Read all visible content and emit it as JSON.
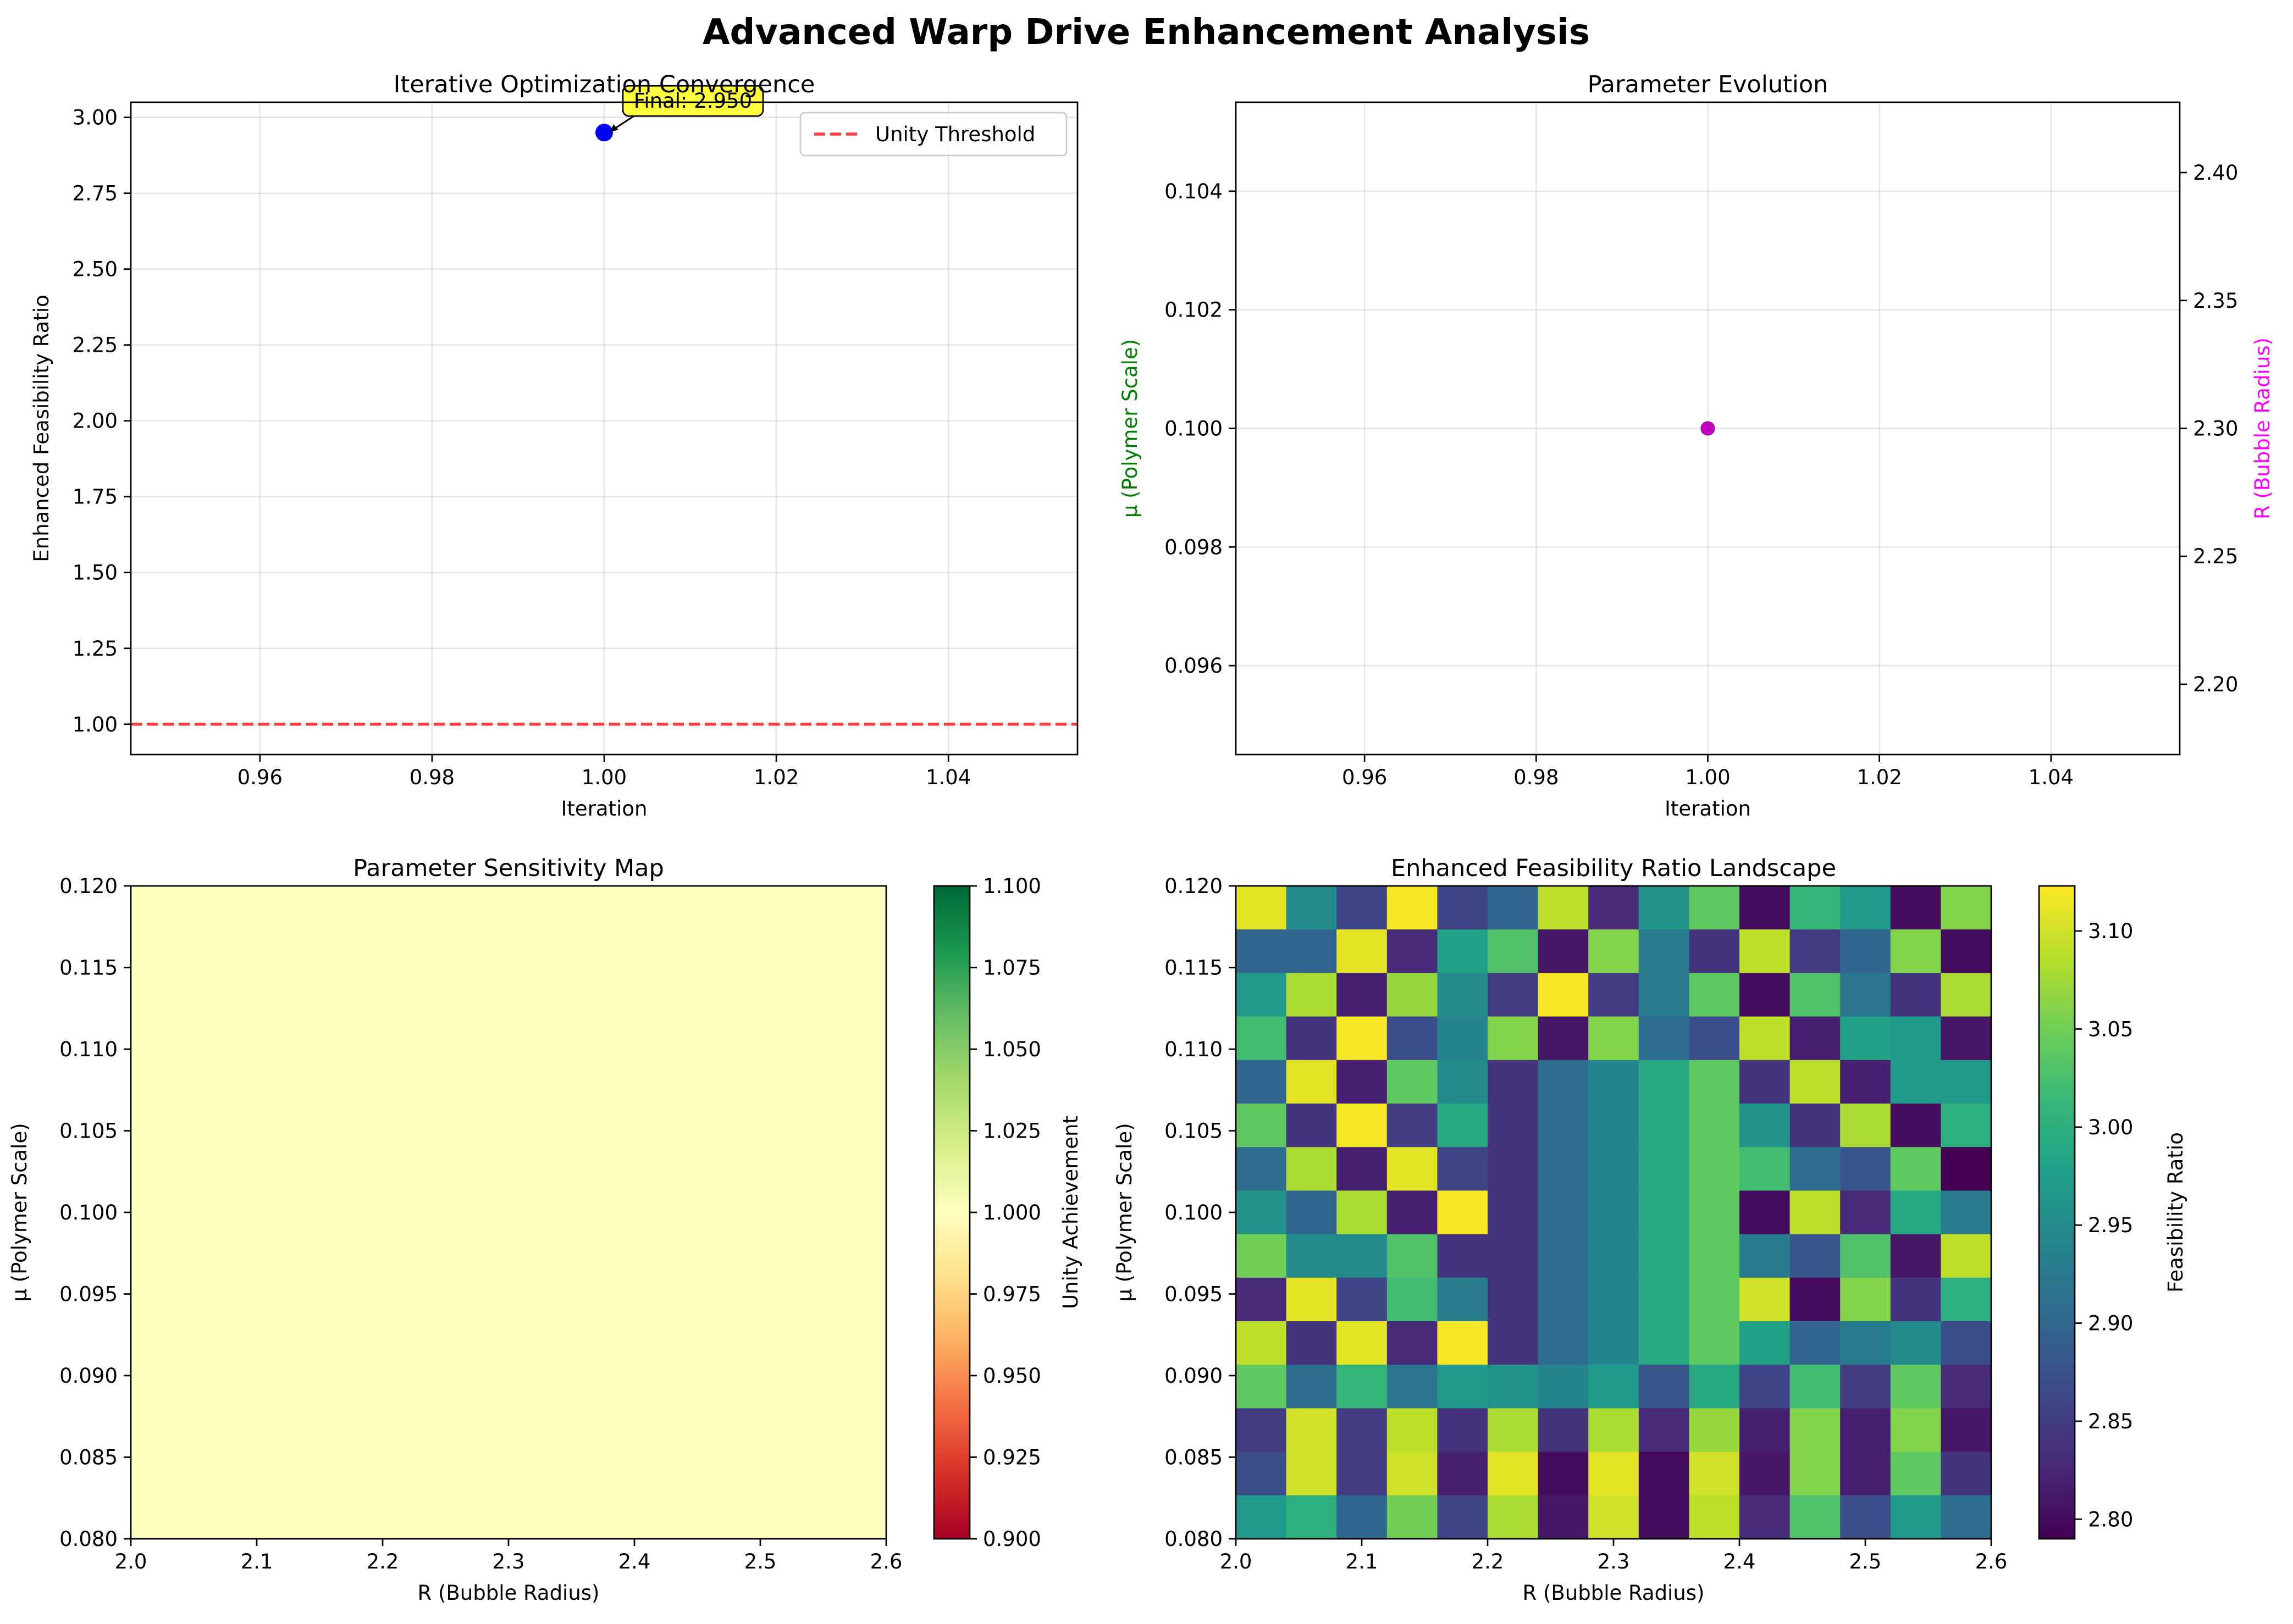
{
  "figure": {
    "title": "Advanced Warp Drive Enhancement Analysis"
  },
  "chart_data": [
    {
      "id": "convergence",
      "type": "line",
      "title": "Iterative Optimization Convergence",
      "xlabel": "Iteration",
      "ylabel": "Enhanced Feasibility Ratio",
      "xlim": [
        0.945,
        1.055
      ],
      "ylim": [
        0.9,
        3.05
      ],
      "xticks": [
        0.96,
        0.98,
        1.0,
        1.02,
        1.04
      ],
      "xtick_labels": [
        "0.96",
        "0.98",
        "1.00",
        "1.02",
        "1.04"
      ],
      "yticks": [
        1.0,
        1.25,
        1.5,
        1.75,
        2.0,
        2.25,
        2.5,
        2.75,
        3.0
      ],
      "ytick_labels": [
        "1.00",
        "1.25",
        "1.50",
        "1.75",
        "2.00",
        "2.25",
        "2.50",
        "2.75",
        "3.00"
      ],
      "grid": true,
      "series": [
        {
          "x": [
            1.0
          ],
          "y": [
            2.95
          ],
          "color": "#0000ff",
          "marker": "circle"
        }
      ],
      "threshold": {
        "name": "Unity Threshold",
        "y": 1.0,
        "color": "#ff0000",
        "style": "dashed"
      },
      "annotation": {
        "text": "Final: 2.950",
        "x": 1.0,
        "y": 2.95,
        "box_color": "#ffff00"
      },
      "legend": {
        "placement": "upper-right",
        "entries": [
          "Unity Threshold"
        ]
      }
    },
    {
      "id": "evolution",
      "type": "scatter",
      "title": "Parameter Evolution",
      "xlabel": "Iteration",
      "ylabel_left": "μ (Polymer Scale)",
      "ylabel_right": "R (Bubble Radius)",
      "ylabel_left_color": "#008000",
      "ylabel_right_color": "#ff00ff",
      "xlim": [
        0.945,
        1.055
      ],
      "ylim_left": [
        0.0945,
        0.1055
      ],
      "ylim_right": [
        2.1725,
        2.4275
      ],
      "xticks": [
        0.96,
        0.98,
        1.0,
        1.02,
        1.04
      ],
      "xtick_labels": [
        "0.96",
        "0.98",
        "1.00",
        "1.02",
        "1.04"
      ],
      "yticks_left": [
        0.096,
        0.098,
        0.1,
        0.102,
        0.104
      ],
      "ytick_left_labels": [
        "0.096",
        "0.098",
        "0.100",
        "0.102",
        "0.104"
      ],
      "yticks_right": [
        2.2,
        2.25,
        2.3,
        2.35,
        2.4
      ],
      "ytick_right_labels": [
        "2.20",
        "2.25",
        "2.30",
        "2.35",
        "2.40"
      ],
      "grid": true,
      "series": [
        {
          "x": [
            1.0
          ],
          "y": [
            0.1
          ],
          "axis": "left",
          "color": "#008000"
        },
        {
          "x": [
            1.0
          ],
          "y": [
            2.3
          ],
          "axis": "right",
          "color": "#bf00bf"
        }
      ]
    },
    {
      "id": "sensitivity",
      "type": "heatmap",
      "title": "Parameter Sensitivity Map",
      "xlabel": "R (Bubble Radius)",
      "ylabel": "μ (Polymer Scale)",
      "xlim": [
        2.0,
        2.6
      ],
      "ylim": [
        0.08,
        0.12
      ],
      "xticks": [
        2.0,
        2.1,
        2.2,
        2.3,
        2.4,
        2.5,
        2.6
      ],
      "xtick_labels": [
        "2.0",
        "2.1",
        "2.2",
        "2.3",
        "2.4",
        "2.5",
        "2.6"
      ],
      "yticks": [
        0.08,
        0.085,
        0.09,
        0.095,
        0.1,
        0.105,
        0.11,
        0.115,
        0.12
      ],
      "ytick_labels": [
        "0.080",
        "0.085",
        "0.090",
        "0.095",
        "0.100",
        "0.105",
        "0.110",
        "0.115",
        "0.120"
      ],
      "colormap": "RdYlGn",
      "values": [
        [
          1.0
        ]
      ],
      "fill_color": "#feffbe",
      "colorbar": {
        "label": "Unity Achievement",
        "range": [
          0.9,
          1.1
        ],
        "ticks": [
          0.9,
          0.925,
          0.95,
          0.975,
          1.0,
          1.025,
          1.05,
          1.075,
          1.1
        ],
        "tick_labels": [
          "0.900",
          "0.925",
          "0.950",
          "0.975",
          "1.000",
          "1.025",
          "1.050",
          "1.075",
          "1.100"
        ]
      }
    },
    {
      "id": "landscape",
      "type": "heatmap",
      "title": "Enhanced Feasibility Ratio Landscape",
      "xlabel": "R (Bubble Radius)",
      "ylabel": "μ (Polymer Scale)",
      "xlim": [
        2.0,
        2.6
      ],
      "ylim": [
        0.08,
        0.12
      ],
      "xticks": [
        2.0,
        2.1,
        2.2,
        2.3,
        2.4,
        2.5,
        2.6
      ],
      "xtick_labels": [
        "2.0",
        "2.1",
        "2.2",
        "2.3",
        "2.4",
        "2.5",
        "2.6"
      ],
      "yticks": [
        0.08,
        0.085,
        0.09,
        0.095,
        0.1,
        0.105,
        0.11,
        0.115,
        0.12
      ],
      "ytick_labels": [
        "0.080",
        "0.085",
        "0.090",
        "0.095",
        "0.100",
        "0.105",
        "0.110",
        "0.115",
        "0.120"
      ],
      "colormap": "viridis",
      "rows_order": "top-to-bottom",
      "values": [
        [
          3.11,
          2.95,
          2.86,
          3.12,
          2.86,
          2.9,
          3.09,
          2.83,
          2.96,
          3.04,
          2.8,
          3.01,
          2.97,
          2.8,
          3.06
        ],
        [
          2.9,
          2.9,
          3.11,
          2.83,
          2.98,
          3.03,
          2.81,
          3.06,
          2.93,
          2.84,
          3.09,
          2.85,
          2.9,
          3.06,
          2.8
        ],
        [
          2.97,
          3.08,
          2.82,
          3.07,
          2.95,
          2.85,
          3.12,
          2.85,
          2.93,
          3.04,
          2.8,
          3.03,
          2.92,
          2.84,
          3.08
        ],
        [
          3.02,
          2.84,
          3.12,
          2.87,
          2.94,
          3.06,
          2.81,
          3.06,
          2.91,
          2.87,
          3.09,
          2.82,
          2.98,
          2.97,
          2.81
        ],
        [
          2.9,
          3.11,
          2.82,
          3.04,
          2.95,
          2.84,
          2.91,
          2.94,
          2.99,
          3.04,
          2.84,
          3.09,
          2.82,
          2.97,
          2.97
        ],
        [
          3.04,
          2.84,
          3.12,
          2.85,
          2.99,
          2.84,
          2.91,
          2.94,
          2.99,
          3.04,
          2.96,
          2.84,
          3.08,
          2.8,
          3.0
        ],
        [
          2.91,
          3.08,
          2.82,
          3.11,
          2.86,
          2.84,
          2.91,
          2.94,
          2.99,
          3.04,
          3.02,
          2.91,
          2.88,
          3.04,
          2.79
        ],
        [
          2.96,
          2.9,
          3.08,
          2.82,
          3.12,
          2.84,
          2.91,
          2.94,
          2.99,
          3.04,
          2.8,
          3.09,
          2.83,
          2.99,
          2.93
        ],
        [
          3.05,
          2.95,
          2.95,
          3.03,
          2.84,
          2.84,
          2.91,
          2.94,
          2.99,
          3.04,
          2.93,
          2.88,
          3.03,
          2.81,
          3.09
        ],
        [
          2.83,
          3.11,
          2.86,
          3.02,
          2.93,
          2.84,
          2.91,
          2.94,
          2.99,
          3.04,
          3.1,
          2.8,
          3.06,
          2.84,
          3.0
        ],
        [
          3.09,
          2.84,
          3.11,
          2.83,
          3.12,
          2.84,
          2.91,
          2.94,
          2.99,
          3.04,
          2.98,
          2.9,
          2.93,
          2.95,
          2.87
        ],
        [
          3.04,
          2.91,
          3.01,
          2.92,
          2.97,
          2.96,
          2.94,
          2.97,
          2.88,
          2.99,
          2.86,
          3.02,
          2.85,
          3.04,
          2.83
        ],
        [
          2.85,
          3.1,
          2.85,
          3.09,
          2.84,
          3.08,
          2.84,
          3.08,
          2.83,
          3.07,
          2.82,
          3.06,
          2.82,
          3.06,
          2.81
        ],
        [
          2.87,
          3.1,
          2.85,
          3.1,
          2.82,
          3.11,
          2.8,
          3.11,
          2.8,
          3.1,
          2.81,
          3.06,
          2.82,
          3.04,
          2.84
        ],
        [
          2.97,
          3.0,
          2.9,
          3.05,
          2.86,
          3.08,
          2.81,
          3.1,
          2.8,
          3.09,
          2.83,
          3.03,
          2.87,
          2.97,
          2.91
        ]
      ],
      "colorbar": {
        "label": "Feasibility Ratio",
        "range": [
          2.79,
          3.123
        ],
        "ticks": [
          2.8,
          2.85,
          2.9,
          2.95,
          3.0,
          3.05,
          3.1
        ],
        "tick_labels": [
          "2.80",
          "2.85",
          "2.90",
          "2.95",
          "3.00",
          "3.05",
          "3.10"
        ]
      }
    }
  ]
}
